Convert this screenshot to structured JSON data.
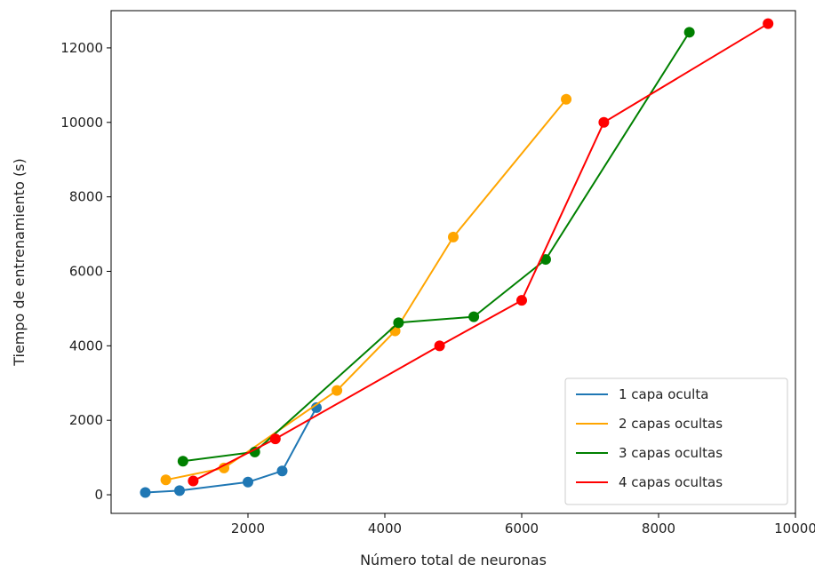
{
  "chart_data": {
    "type": "line",
    "xlabel": "Número total de neuronas",
    "ylabel": "Tiempo de entrenamiento (s)",
    "xlim": [
      0,
      10000
    ],
    "ylim": [
      -500,
      13000
    ],
    "xticks": [
      2000,
      4000,
      6000,
      8000,
      10000
    ],
    "yticks": [
      0,
      2000,
      4000,
      6000,
      8000,
      10000,
      12000
    ],
    "grid": false,
    "legend_position": "bottom-right",
    "series": [
      {
        "name": "1 capa oculta",
        "color": "#1f77b4",
        "x": [
          500,
          1000,
          2000,
          2500,
          3000
        ],
        "y": [
          60,
          110,
          340,
          640,
          2340
        ]
      },
      {
        "name": "2 capas ocultas",
        "color": "#ffa500",
        "x": [
          800,
          1650,
          3300,
          4150,
          5000,
          6650
        ],
        "y": [
          400,
          720,
          2800,
          4400,
          6920,
          10620
        ]
      },
      {
        "name": "3 capas ocultas",
        "color": "#008000",
        "x": [
          1050,
          2100,
          4200,
          5300,
          6350,
          8450
        ],
        "y": [
          900,
          1150,
          4620,
          4780,
          6320,
          12420
        ]
      },
      {
        "name": "4 capas ocultas",
        "color": "#ff0000",
        "x": [
          1200,
          2400,
          4800,
          6000,
          7200,
          9600
        ],
        "y": [
          370,
          1500,
          4000,
          5220,
          10000,
          12650
        ]
      }
    ]
  }
}
